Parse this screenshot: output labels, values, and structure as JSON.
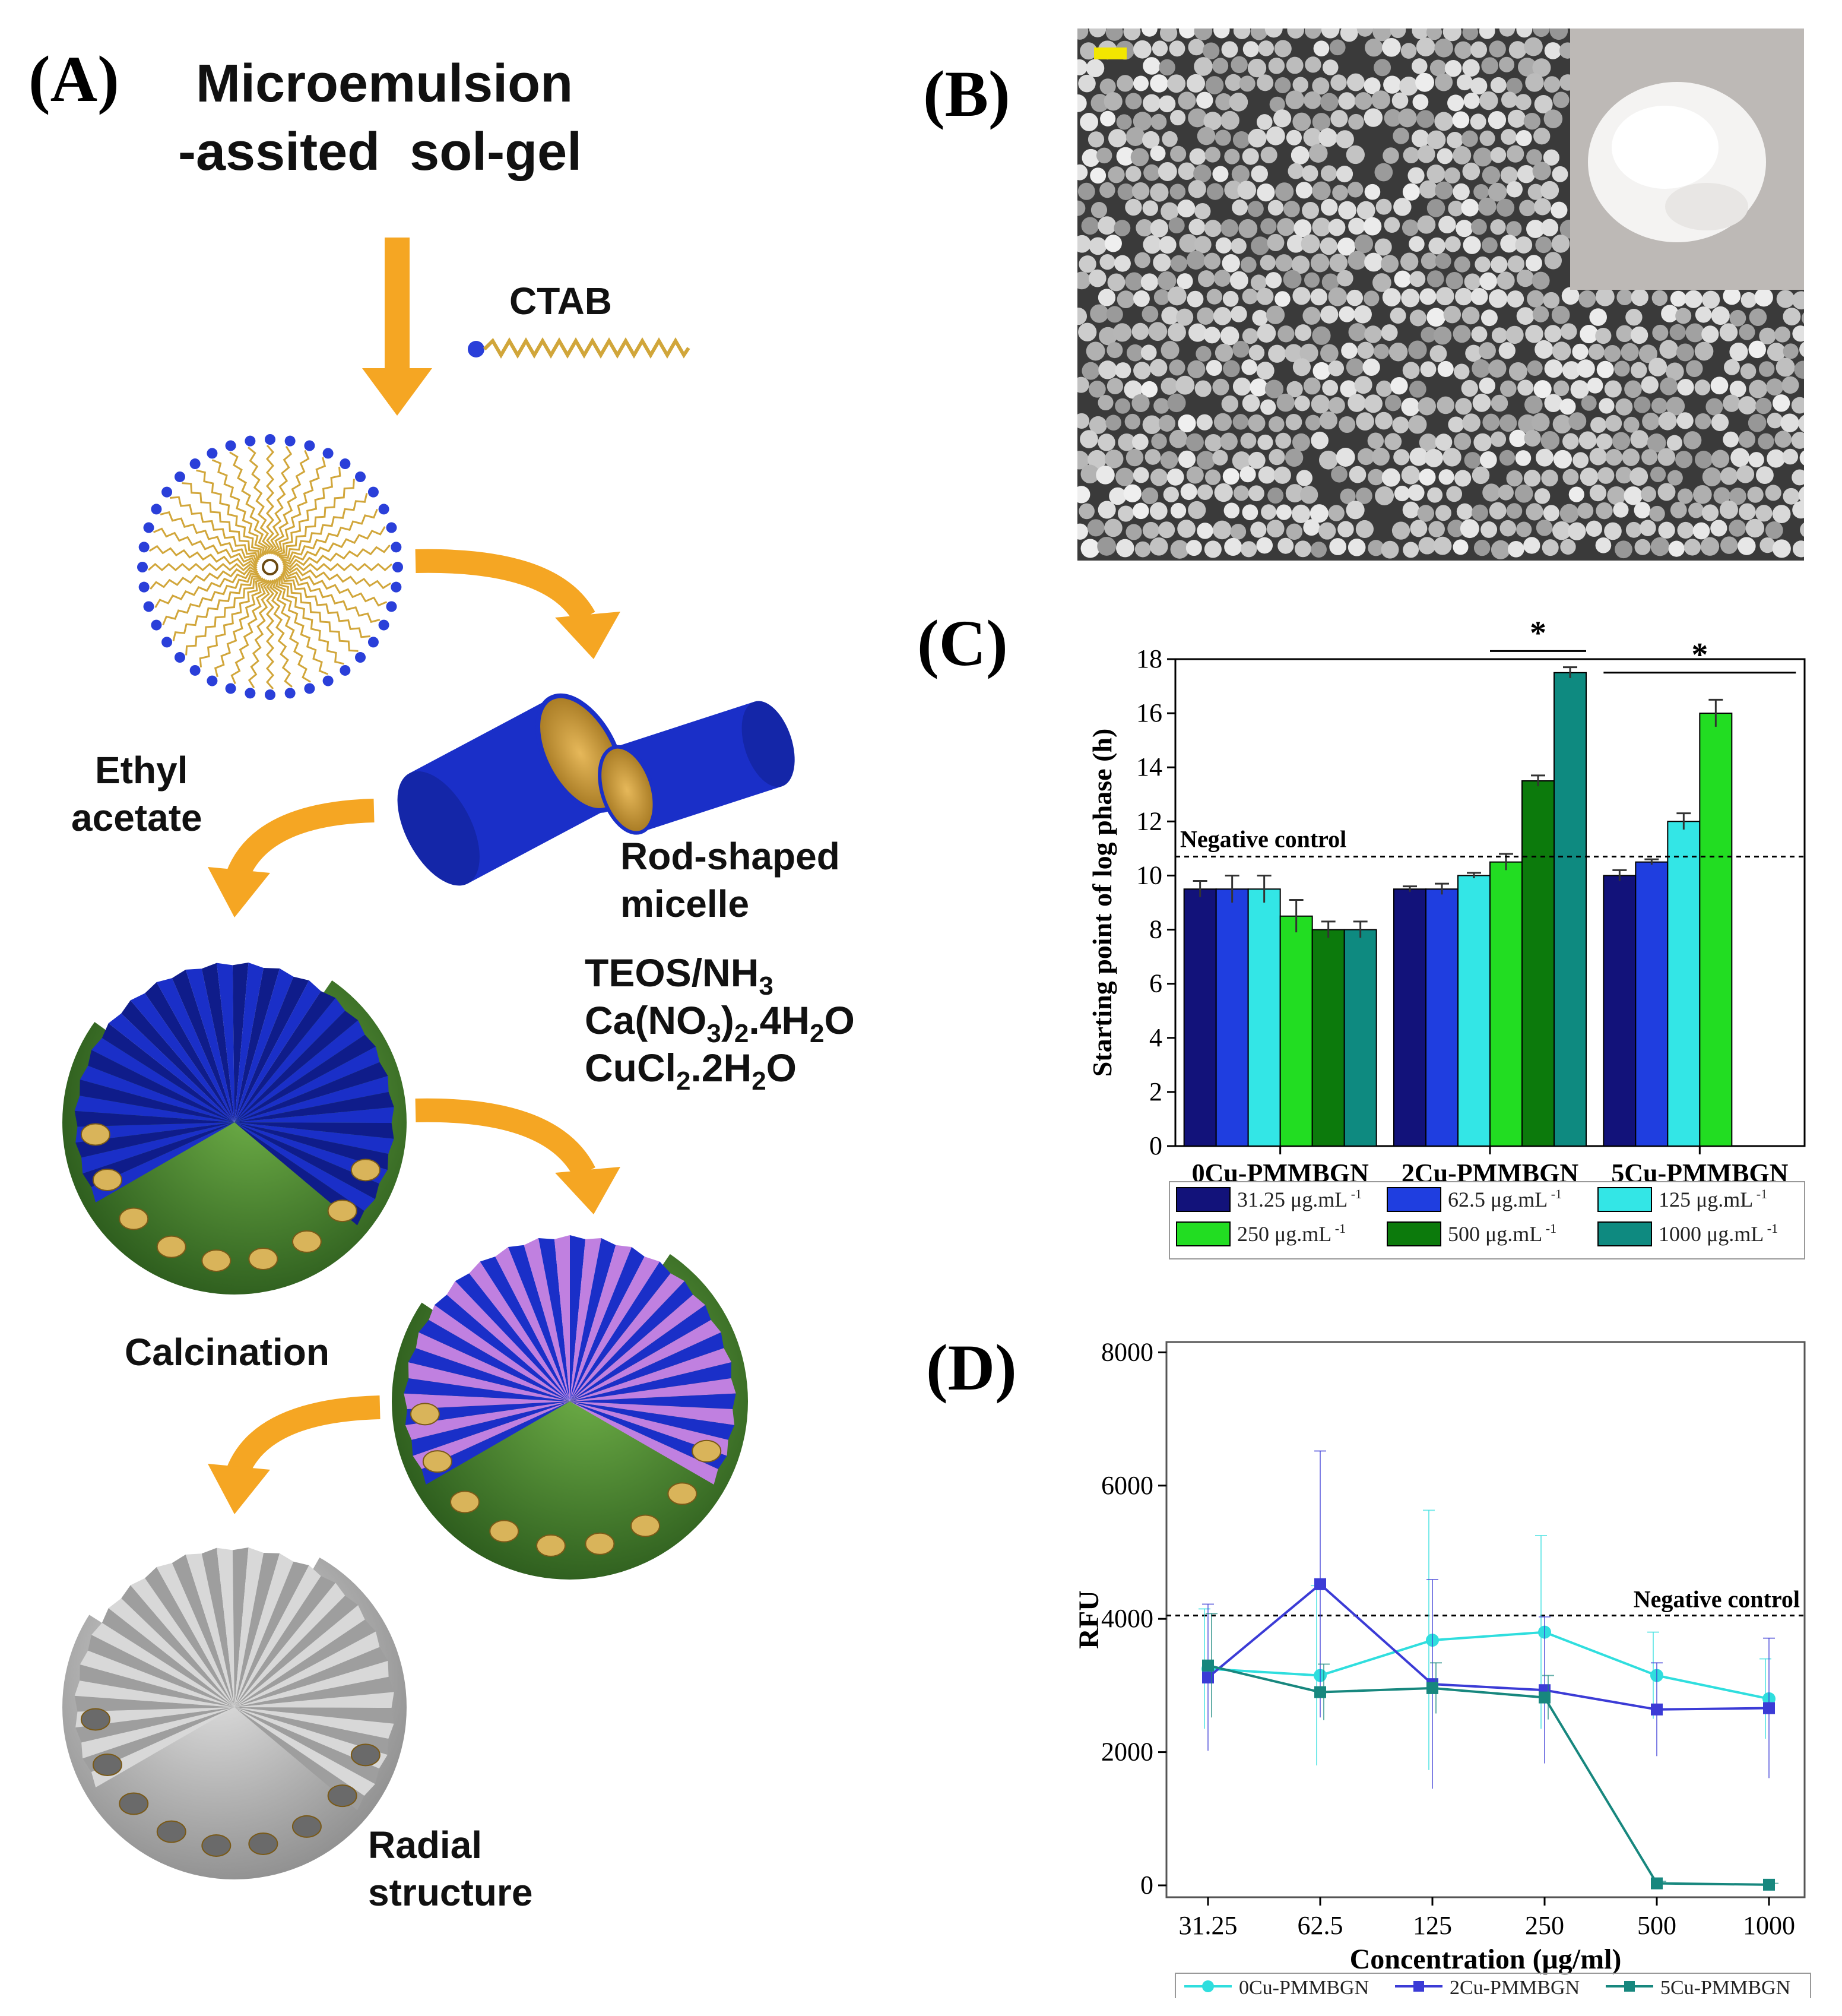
{
  "panels": {
    "a": {
      "letter": "(A)",
      "title_line1": "Microemulsion",
      "title_line2": "-assited  sol-gel",
      "ctab": "CTAB",
      "ethyl_line1": "Ethyl",
      "ethyl_line2": "acetate",
      "rod_line1": "Rod-shaped",
      "rod_line2": "micelle",
      "reagent1": "TEOS/NH",
      "reagent1_sub": "3",
      "reagent2_a": "Ca(NO",
      "reagent2_sub1": "3",
      "reagent2_b": ")",
      "reagent2_sub2": "2",
      "reagent2_c": ".4H",
      "reagent2_sub3": "2",
      "reagent2_d": "O",
      "reagent3_a": "CuCl",
      "reagent3_sub1": "2",
      "reagent3_b": ".2H",
      "reagent3_sub2": "2",
      "reagent3_c": "O",
      "calcination": "Calcination",
      "radial_line1": "Radial",
      "radial_line2": "structure",
      "colors": {
        "arrow": "#f5a623",
        "micelle_blue": "#1a2fc8",
        "shell_green": "#3f7a2a",
        "radial_gray": "#b5b5b5"
      }
    },
    "b": {
      "letter": "(B)",
      "image": "sem-micrograph-with-photo-inset"
    },
    "c": {
      "letter": "(C)"
    },
    "d": {
      "letter": "(D)"
    }
  },
  "chart_data": [
    {
      "panel": "C",
      "type": "bar",
      "ylabel": "Starting point of log phase (h)",
      "ylim": [
        0,
        18
      ],
      "yticks": [
        "0",
        "2",
        "4",
        "6",
        "8",
        "10",
        "12",
        "14",
        "16",
        "18"
      ],
      "categories": [
        "0Cu-PMMBGN",
        "2Cu-PMMBGN",
        "5Cu-PMMBGN"
      ],
      "series": [
        {
          "name": "31.25 μg.mL",
          "sup": "-1",
          "color": "#12127a",
          "values": [
            9.5,
            9.5,
            10.0
          ],
          "errors": [
            0.3,
            0.1,
            0.2
          ]
        },
        {
          "name": "62.5 μg.mL",
          "sup": "-1",
          "color": "#1f3ee0",
          "values": [
            9.5,
            9.5,
            10.5
          ],
          "errors": [
            0.5,
            0.2,
            0.1
          ]
        },
        {
          "name": "125 μg.mL",
          "sup": "-1",
          "color": "#33e6e6",
          "values": [
            9.5,
            10.0,
            12.0
          ],
          "errors": [
            0.5,
            0.1,
            0.3
          ]
        },
        {
          "name": "250 μg.mL",
          "sup": "-1",
          "color": "#22dd22",
          "values": [
            8.5,
            10.5,
            16.0
          ],
          "errors": [
            0.6,
            0.3,
            0.5
          ]
        },
        {
          "name": "500 μg.mL",
          "sup": "-1",
          "color": "#0c7a0c",
          "values": [
            8.0,
            13.5,
            null
          ],
          "errors": [
            0.3,
            0.2,
            null
          ]
        },
        {
          "name": "1000 μg.mL",
          "sup": "-1",
          "color": "#0e8a80",
          "values": [
            8.0,
            17.5,
            null
          ],
          "errors": [
            0.3,
            0.2,
            null
          ]
        }
      ],
      "reference_line": {
        "label": "Negative control",
        "value": 10.7
      },
      "significance": [
        {
          "label": "*",
          "category": "2Cu-PMMBGN"
        },
        {
          "label": "*",
          "category": "5Cu-PMMBGN"
        }
      ],
      "legend_position": "bottom"
    },
    {
      "panel": "D",
      "type": "line",
      "xlabel": "Concentration (μg/ml)",
      "ylabel": "RFU",
      "ylim": [
        0,
        8000
      ],
      "yticks": [
        "0",
        "2000",
        "4000",
        "6000",
        "8000"
      ],
      "categories": [
        "31.25",
        "62.5",
        "125",
        "250",
        "500",
        "1000"
      ],
      "series": [
        {
          "name": "0Cu-PMMBGN",
          "color": "#2fdede",
          "marker": "circle",
          "values": [
            3250,
            3150,
            3680,
            3800,
            3150,
            2800
          ],
          "errors": [
            900,
            1350,
            1950,
            1450,
            650,
            600
          ]
        },
        {
          "name": "2Cu-PMMBGN",
          "color": "#3b3bd6",
          "marker": "square",
          "values": [
            3120,
            4520,
            3020,
            2930,
            2640,
            2660
          ],
          "errors": [
            1100,
            2000,
            1570,
            1100,
            700,
            1050
          ]
        },
        {
          "name": "5Cu-PMMBGN",
          "color": "#17877e",
          "marker": "square",
          "values": [
            3300,
            2900,
            2960,
            2820,
            30,
            10
          ],
          "errors": [
            780,
            420,
            380,
            330,
            30,
            20
          ]
        }
      ],
      "reference_line": {
        "label": "Negative control",
        "value": 4050
      },
      "legend_position": "bottom"
    }
  ]
}
